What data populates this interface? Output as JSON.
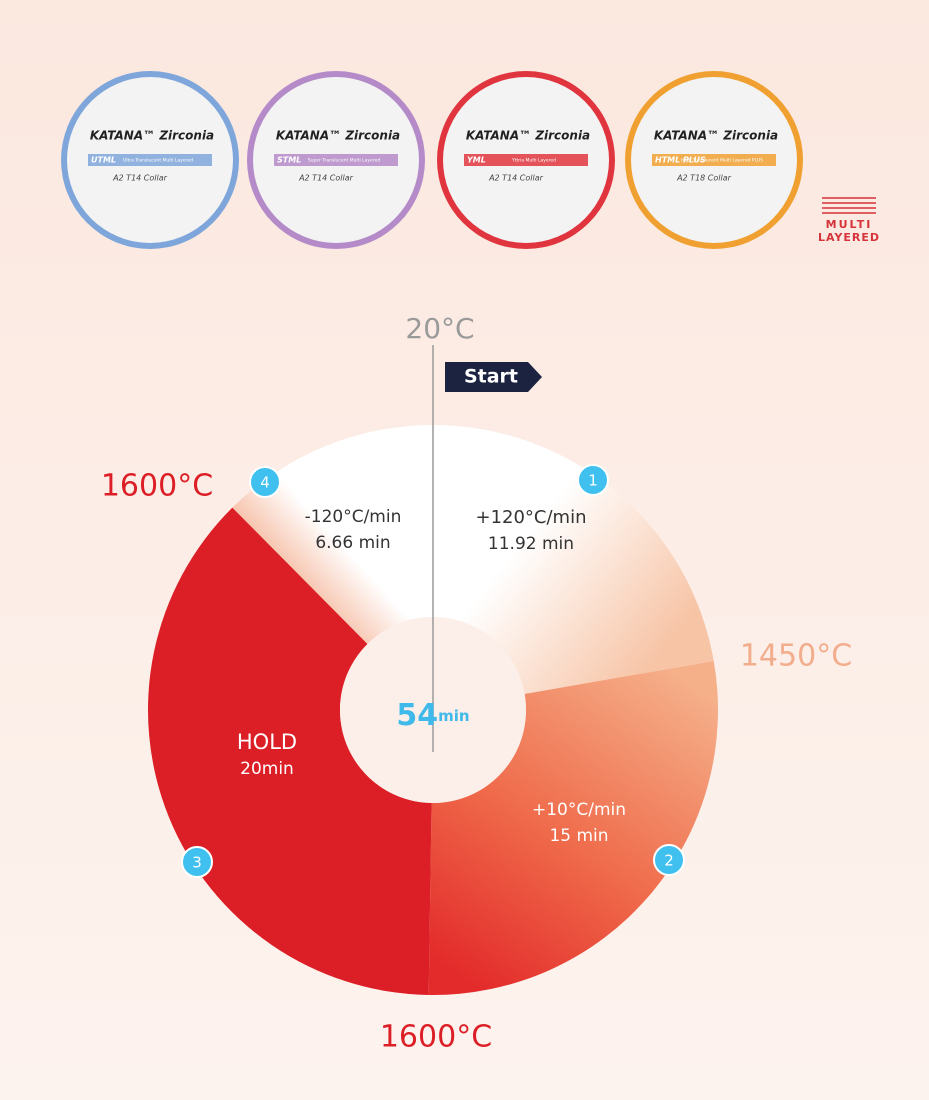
{
  "products": [
    {
      "brand": "KATANA™ Zirconia",
      "code": "UTML",
      "description": "Ultra Translucent Multi Layered",
      "spec": "A2  T14  Collar",
      "color": "#7fa6da"
    },
    {
      "brand": "KATANA™ Zirconia",
      "code": "STML",
      "description": "Super Translucent Multi Layered",
      "spec": "A2  T14  Collar",
      "color": "#b48ac8"
    },
    {
      "brand": "KATANA™ Zirconia",
      "code": "YML",
      "description": "Yttria Multi Layered",
      "spec": "A2  T14  Collar",
      "color": "#e0353e"
    },
    {
      "brand": "KATANA™ Zirconia",
      "code": "HTML PLUS",
      "description": "High Translucent Multi Layered PLUS",
      "spec": "A2  T18  Collar",
      "color": "#f0a030"
    }
  ],
  "badge": [
    "MULTI",
    "LAYERED"
  ],
  "cycle": {
    "start_temp": "20°C",
    "start_label": "Start",
    "total": "54",
    "total_unit": "min",
    "segments": [
      {
        "step": "1",
        "rate": "+120°C/min",
        "minutes": 11.92,
        "minutes_label": "11.92 min"
      },
      {
        "step": "2",
        "rate": "+10°C/min",
        "minutes": 15,
        "minutes_label": "15 min"
      },
      {
        "step": "3",
        "rate": "HOLD",
        "minutes": 20,
        "minutes_label": "20min"
      },
      {
        "step": "4",
        "rate": "-120°C/min",
        "minutes": 6.66,
        "minutes_label": "6.66 min"
      }
    ],
    "temperatures": [
      "1450°C",
      "1600°C",
      "1600°C"
    ]
  }
}
